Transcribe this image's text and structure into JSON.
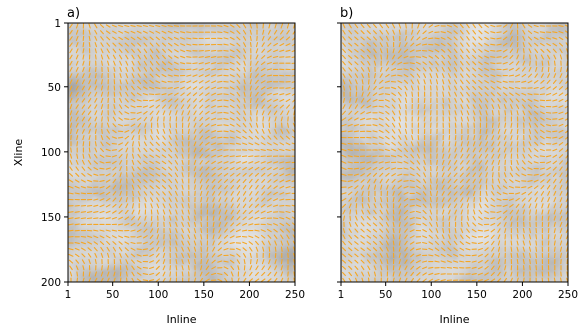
{
  "chart_data": [
    {
      "type": "heatmap",
      "panel_label": "a)",
      "xlabel": "Inline",
      "ylabel": "Xline",
      "xlim": [
        1,
        250
      ],
      "ylim": [
        1,
        200
      ],
      "y_inverted": true,
      "xticks": [
        1,
        50,
        100,
        150,
        200,
        250
      ],
      "yticks": [
        1,
        50,
        100,
        150,
        200
      ],
      "background_colormap": "grayscale",
      "overlay": "orange line-segment vector field",
      "overlay_color": "#f5a623"
    },
    {
      "type": "heatmap",
      "panel_label": "b)",
      "xlabel": "Inline",
      "ylabel": "",
      "xlim": [
        1,
        250
      ],
      "ylim": [
        1,
        200
      ],
      "y_inverted": true,
      "xticks": [
        1,
        50,
        100,
        150,
        200,
        250
      ],
      "yticks": [
        1,
        50,
        100,
        150,
        200
      ],
      "show_ytick_labels": false,
      "background_colormap": "grayscale",
      "overlay": "orange line-segment vector field",
      "overlay_color": "#f5a623"
    }
  ]
}
